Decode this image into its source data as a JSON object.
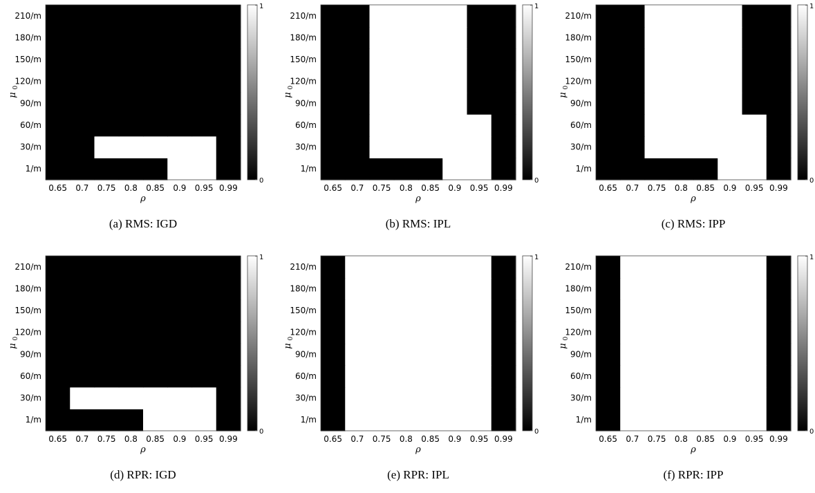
{
  "chart_data": [
    {
      "type": "heatmap",
      "caption": "(a) RMS: IGD",
      "xlabel": "ρ",
      "ylabel": "μ",
      "ylabel_sub": "0",
      "x_categories": [
        "0.65",
        "0.7",
        "0.75",
        "0.8",
        "0.85",
        "0.9",
        "0.95",
        "0.99"
      ],
      "y_categories": [
        "1/m",
        "30/m",
        "60/m",
        "90/m",
        "120/m",
        "150/m",
        "180/m",
        "210/m"
      ],
      "colorbar": {
        "min": "0",
        "max": "1",
        "colormap": "gray"
      },
      "values": [
        [
          0,
          0,
          0,
          0,
          0,
          1,
          1,
          0
        ],
        [
          0,
          0,
          1,
          1,
          1,
          1,
          1,
          0
        ],
        [
          0,
          0,
          0,
          0,
          0,
          0,
          0,
          0
        ],
        [
          0,
          0,
          0,
          0,
          0,
          0,
          0,
          0
        ],
        [
          0,
          0,
          0,
          0,
          0,
          0,
          0,
          0
        ],
        [
          0,
          0,
          0,
          0,
          0,
          0,
          0,
          0
        ],
        [
          0,
          0,
          0,
          0,
          0,
          0,
          0,
          0
        ],
        [
          0,
          0,
          0,
          0,
          0,
          0,
          0,
          0
        ]
      ]
    },
    {
      "type": "heatmap",
      "caption": "(b) RMS: IPL",
      "xlabel": "ρ",
      "ylabel": "μ",
      "ylabel_sub": "0",
      "x_categories": [
        "0.65",
        "0.7",
        "0.75",
        "0.8",
        "0.85",
        "0.9",
        "0.95",
        "0.99"
      ],
      "y_categories": [
        "1/m",
        "30/m",
        "60/m",
        "90/m",
        "120/m",
        "150/m",
        "180/m",
        "210/m"
      ],
      "colorbar": {
        "min": "0",
        "max": "1",
        "colormap": "gray"
      },
      "values": [
        [
          0,
          0,
          0,
          0,
          0,
          1,
          1,
          0
        ],
        [
          0,
          0,
          1,
          1,
          1,
          1,
          1,
          0
        ],
        [
          0,
          0,
          1,
          1,
          1,
          1,
          1,
          0
        ],
        [
          0,
          0,
          1,
          1,
          1,
          1,
          0,
          0
        ],
        [
          0,
          0,
          1,
          1,
          1,
          1,
          0,
          0
        ],
        [
          0,
          0,
          1,
          1,
          1,
          1,
          0,
          0
        ],
        [
          0,
          0,
          1,
          1,
          1,
          1,
          0,
          0
        ],
        [
          0,
          0,
          1,
          1,
          1,
          1,
          0,
          0
        ]
      ]
    },
    {
      "type": "heatmap",
      "caption": "(c) RMS: IPP",
      "xlabel": "ρ",
      "ylabel": "μ",
      "ylabel_sub": "0",
      "x_categories": [
        "0.65",
        "0.7",
        "0.75",
        "0.8",
        "0.85",
        "0.9",
        "0.95",
        "0.99"
      ],
      "y_categories": [
        "1/m",
        "30/m",
        "60/m",
        "90/m",
        "120/m",
        "150/m",
        "180/m",
        "210/m"
      ],
      "colorbar": {
        "min": "0",
        "max": "1",
        "colormap": "gray"
      },
      "values": [
        [
          0,
          0,
          0,
          0,
          0,
          1,
          1,
          0
        ],
        [
          0,
          0,
          1,
          1,
          1,
          1,
          1,
          0
        ],
        [
          0,
          0,
          1,
          1,
          1,
          1,
          1,
          0
        ],
        [
          0,
          0,
          1,
          1,
          1,
          1,
          0,
          0
        ],
        [
          0,
          0,
          1,
          1,
          1,
          1,
          0,
          0
        ],
        [
          0,
          0,
          1,
          1,
          1,
          1,
          0,
          0
        ],
        [
          0,
          0,
          1,
          1,
          1,
          1,
          0,
          0
        ],
        [
          0,
          0,
          1,
          1,
          1,
          1,
          0,
          0
        ]
      ]
    },
    {
      "type": "heatmap",
      "caption": "(d) RPR: IGD",
      "xlabel": "ρ",
      "ylabel": "μ",
      "ylabel_sub": "0",
      "x_categories": [
        "0.65",
        "0.7",
        "0.75",
        "0.8",
        "0.85",
        "0.9",
        "0.95",
        "0.99"
      ],
      "y_categories": [
        "1/m",
        "30/m",
        "60/m",
        "90/m",
        "120/m",
        "150/m",
        "180/m",
        "210/m"
      ],
      "colorbar": {
        "min": "0",
        "max": "1",
        "colormap": "gray"
      },
      "values": [
        [
          0,
          0,
          0,
          0,
          1,
          1,
          1,
          0
        ],
        [
          0,
          1,
          1,
          1,
          1,
          1,
          1,
          0
        ],
        [
          0,
          0,
          0,
          0,
          0,
          0,
          0,
          0
        ],
        [
          0,
          0,
          0,
          0,
          0,
          0,
          0,
          0
        ],
        [
          0,
          0,
          0,
          0,
          0,
          0,
          0,
          0
        ],
        [
          0,
          0,
          0,
          0,
          0,
          0,
          0,
          0
        ],
        [
          0,
          0,
          0,
          0,
          0,
          0,
          0,
          0
        ],
        [
          0,
          0,
          0,
          0,
          0,
          0,
          0,
          0
        ]
      ]
    },
    {
      "type": "heatmap",
      "caption": "(e) RPR: IPL",
      "xlabel": "ρ",
      "ylabel": "μ",
      "ylabel_sub": "0",
      "x_categories": [
        "0.65",
        "0.7",
        "0.75",
        "0.8",
        "0.85",
        "0.9",
        "0.95",
        "0.99"
      ],
      "y_categories": [
        "1/m",
        "30/m",
        "60/m",
        "90/m",
        "120/m",
        "150/m",
        "180/m",
        "210/m"
      ],
      "colorbar": {
        "min": "0",
        "max": "1",
        "colormap": "gray"
      },
      "values": [
        [
          0,
          1,
          1,
          1,
          1,
          1,
          1,
          0
        ],
        [
          0,
          1,
          1,
          1,
          1,
          1,
          1,
          0
        ],
        [
          0,
          1,
          1,
          1,
          1,
          1,
          1,
          0
        ],
        [
          0,
          1,
          1,
          1,
          1,
          1,
          1,
          0
        ],
        [
          0,
          1,
          1,
          1,
          1,
          1,
          1,
          0
        ],
        [
          0,
          1,
          1,
          1,
          1,
          1,
          1,
          0
        ],
        [
          0,
          1,
          1,
          1,
          1,
          1,
          1,
          0
        ],
        [
          0,
          1,
          1,
          1,
          1,
          1,
          1,
          0
        ]
      ]
    },
    {
      "type": "heatmap",
      "caption": "(f) RPR: IPP",
      "xlabel": "ρ",
      "ylabel": "μ",
      "ylabel_sub": "0",
      "x_categories": [
        "0.65",
        "0.7",
        "0.75",
        "0.8",
        "0.85",
        "0.9",
        "0.95",
        "0.99"
      ],
      "y_categories": [
        "1/m",
        "30/m",
        "60/m",
        "90/m",
        "120/m",
        "150/m",
        "180/m",
        "210/m"
      ],
      "colorbar": {
        "min": "0",
        "max": "1",
        "colormap": "gray"
      },
      "values": [
        [
          0,
          1,
          1,
          1,
          1,
          1,
          1,
          0
        ],
        [
          0,
          1,
          1,
          1,
          1,
          1,
          1,
          0
        ],
        [
          0,
          1,
          1,
          1,
          1,
          1,
          1,
          0
        ],
        [
          0,
          1,
          1,
          1,
          1,
          1,
          1,
          0
        ],
        [
          0,
          1,
          1,
          1,
          1,
          1,
          1,
          0
        ],
        [
          0,
          1,
          1,
          1,
          1,
          1,
          1,
          0
        ],
        [
          0,
          1,
          1,
          1,
          1,
          1,
          1,
          0
        ],
        [
          0,
          1,
          1,
          1,
          1,
          1,
          1,
          0
        ]
      ]
    }
  ]
}
